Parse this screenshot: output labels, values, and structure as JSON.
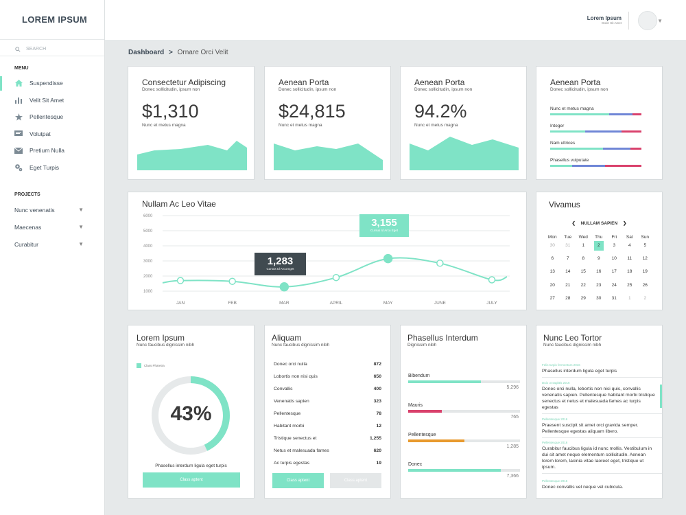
{
  "app": {
    "logo": "LOREM IPSUM"
  },
  "search": {
    "placeholder": "SEARCH"
  },
  "menu": {
    "heading": "MENU",
    "items": [
      {
        "label": "Suspendisse",
        "icon": "home-icon"
      },
      {
        "label": "Velit Sit Amet",
        "icon": "bar-chart-icon"
      },
      {
        "label": "Pellentesque",
        "icon": "star-icon"
      },
      {
        "label": "Volutpat",
        "icon": "chat-icon"
      },
      {
        "label": "Pretium Nulla",
        "icon": "mail-icon"
      },
      {
        "label": "Eget Turpis",
        "icon": "gear-icon"
      }
    ]
  },
  "projects": {
    "heading": "PROJECTS",
    "items": [
      "Nunc venenatis",
      "Maecenas",
      "Curabitur"
    ]
  },
  "user": {
    "name": "Lorem Ipsum",
    "sub": "Dolor Sit Amet"
  },
  "breadcrumb": {
    "root": "Dashboard",
    "sep": ">",
    "current": "Ornare Orci Velit"
  },
  "colors": {
    "accent": "#7fe3c6",
    "blue": "#6f86d6",
    "pink": "#d9416c",
    "orange": "#e89a2e",
    "dark": "#404a50"
  },
  "stat_cards": [
    {
      "title": "Consectetur Adipiscing",
      "sub": "Donec sollicitudin, ipsum non",
      "value": "$1,310",
      "value_sub": "Nunc et metus magna"
    },
    {
      "title": "Aenean Porta",
      "sub": "Donec sollicitudin, ipsum non",
      "value": "$24,815",
      "value_sub": "Nunc et metus magna"
    },
    {
      "title": "Aenean Porta",
      "sub": "Donec sollicitudin, ipsum non",
      "value": "94.2%",
      "value_sub": "Nunc et metus magna"
    }
  ],
  "bars_card": {
    "title": "Aenean Porta",
    "sub": "Donec sollicitudin, ipsum non",
    "items": [
      {
        "label": "Nunc et metus magna",
        "segments": [
          0.65,
          0.25,
          0.1
        ]
      },
      {
        "label": "Integer",
        "segments": [
          0.38,
          0.4,
          0.22
        ]
      },
      {
        "label": "Nam ultrices",
        "segments": [
          0.58,
          0.3,
          0.12
        ]
      },
      {
        "label": "Phasellus vulputate",
        "segments": [
          0.24,
          0.36,
          0.4
        ]
      }
    ]
  },
  "line_card": {
    "title": "Nullam Ac Leo Vitae",
    "tooltip_dark": {
      "value": "1,283",
      "sub": "Cursus Id Arcu Eget"
    },
    "tooltip_mint": {
      "value": "3,155",
      "sub": "Cursus Id Arcu Eget"
    }
  },
  "chart_data": {
    "type": "line",
    "x": [
      "JAN",
      "FEB",
      "MAR",
      "APRIL",
      "MAY",
      "JUNE",
      "JULY"
    ],
    "y_ticks": [
      1000,
      2000,
      3000,
      4000,
      5000,
      6000
    ],
    "ylim": [
      1000,
      6000
    ],
    "series": [
      {
        "values": [
          1700,
          1650,
          1283,
          1900,
          3155,
          2850,
          1750
        ]
      }
    ]
  },
  "calendar": {
    "title": "Vivamus",
    "month": "NULLAM SAPIEN",
    "weekdays": [
      "Mon",
      "Tue",
      "Wed",
      "Thu",
      "Fri",
      "Sat",
      "Sun"
    ],
    "weeks": [
      [
        "30",
        "31",
        "1",
        "2",
        "3",
        "4",
        "5"
      ],
      [
        "6",
        "7",
        "8",
        "9",
        "10",
        "11",
        "12"
      ],
      [
        "13",
        "14",
        "15",
        "16",
        "17",
        "18",
        "19"
      ],
      [
        "20",
        "21",
        "22",
        "23",
        "24",
        "25",
        "26"
      ],
      [
        "27",
        "28",
        "29",
        "30",
        "31",
        "1",
        "2"
      ]
    ],
    "selected": "2"
  },
  "donut_card": {
    "title": "Lorem Ipsum",
    "sub": "Nunc faucibus dignissim nibh",
    "legend": "Class Pharetra",
    "percent": "43%",
    "fraction": 0.43,
    "caption": "Phasellus interdum ligula eget turpis",
    "button": "Class aptent"
  },
  "list_card": {
    "title": "Aliquam",
    "sub": "Nunc faucibus dignissim nibh",
    "rows": [
      {
        "label": "Donec orci nulla",
        "value": "872"
      },
      {
        "label": "Lobortis non nisi quis",
        "value": "650"
      },
      {
        "label": "Convallis",
        "value": "400"
      },
      {
        "label": "Venenatis sapien",
        "value": "323"
      },
      {
        "label": "Pellentesque",
        "value": "78"
      },
      {
        "label": "Habitant morbi",
        "value": "12"
      },
      {
        "label": "Tristique senectus et",
        "value": "1,255"
      },
      {
        "label": "Netus et malesuada fames",
        "value": "620"
      },
      {
        "label": "Ac turpis egestas",
        "value": "19"
      }
    ],
    "button_primary": "Class aptent",
    "button_secondary": "Class aptent"
  },
  "hbar_card": {
    "title": "Phasellus Interdum",
    "sub": "Dignissim nibh",
    "items": [
      {
        "label": "Bibendum",
        "value": "5,296",
        "fraction": 0.65,
        "color": "#7fe3c6"
      },
      {
        "label": "Mauris",
        "value": "765",
        "fraction": 0.3,
        "color": "#d9416c"
      },
      {
        "label": "Pellentesque",
        "value": "1,285",
        "fraction": 0.5,
        "color": "#e89a2e"
      },
      {
        "label": "Donec",
        "value": "7,366",
        "fraction": 0.83,
        "color": "#7fe3c6"
      }
    ]
  },
  "feed_card": {
    "title": "Nunc Leo Tortor",
    "sub": "Nunc faucibus dignissim nibh",
    "entries": [
      {
        "date": "Felis turpis fermentum 2016",
        "text": "Phasellus interdum ligula eget turpis"
      },
      {
        "date": "Duis ut sagittis 2016",
        "text": "Donec orci nulla, lobortis non nisi quis, convallis venenatis sapien. Pellentesque habitant morbi tristique senectus et netus et malesuada fames ac turpis egestas"
      },
      {
        "date": "Pellentesque 2016",
        "text": "Praesent suscipit sit amet orci gravida semper. Pellentesque egestas aliquam libero."
      },
      {
        "date": "Pellentesque 2016",
        "text": "Curabitur faucibus ligula id nunc mollis. Vestibulum in dui sit amet neque elementum sollicitudin. Aenean lorem lorem, lacinia vitae laoreet eget, tristique ut ipsum."
      },
      {
        "date": "Pellentesque 2016",
        "text": "Donec convallis vel neque vel cubicula."
      }
    ]
  }
}
